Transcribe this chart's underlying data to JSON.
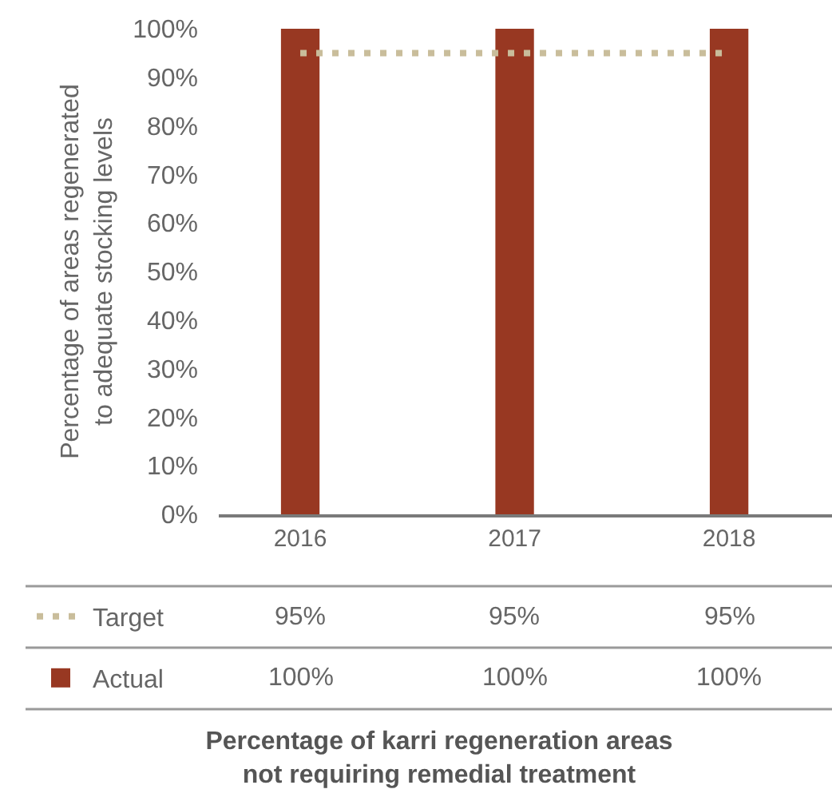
{
  "chart_data": {
    "type": "bar",
    "title": "Percentage of karri regeneration areas not requiring remedial treatment",
    "ylabel": "Percentage of areas regenerated to adequate stocking levels",
    "categories": [
      "2016",
      "2017",
      "2018"
    ],
    "series": [
      {
        "name": "Target",
        "type": "line",
        "line_style": "dotted",
        "color": "#c9bd9b",
        "values": [
          95,
          95,
          95
        ],
        "value_labels": [
          "95%",
          "95%",
          "95%"
        ]
      },
      {
        "name": "Actual",
        "color": "#983822",
        "values": [
          100,
          100,
          100
        ],
        "value_labels": [
          "100%",
          "100%",
          "100%"
        ]
      }
    ],
    "ylim": [
      0,
      100
    ],
    "yticks": [
      {
        "value": 0,
        "label": "0%"
      },
      {
        "value": 10,
        "label": "10%"
      },
      {
        "value": 20,
        "label": "20%"
      },
      {
        "value": 30,
        "label": "30%"
      },
      {
        "value": 40,
        "label": "40%"
      },
      {
        "value": 50,
        "label": "50%"
      },
      {
        "value": 60,
        "label": "60%"
      },
      {
        "value": 70,
        "label": "70%"
      },
      {
        "value": 80,
        "label": "80%"
      },
      {
        "value": 90,
        "label": "90%"
      },
      {
        "value": 100,
        "label": "100%"
      }
    ],
    "grid": false,
    "legend": "bottom left"
  }
}
